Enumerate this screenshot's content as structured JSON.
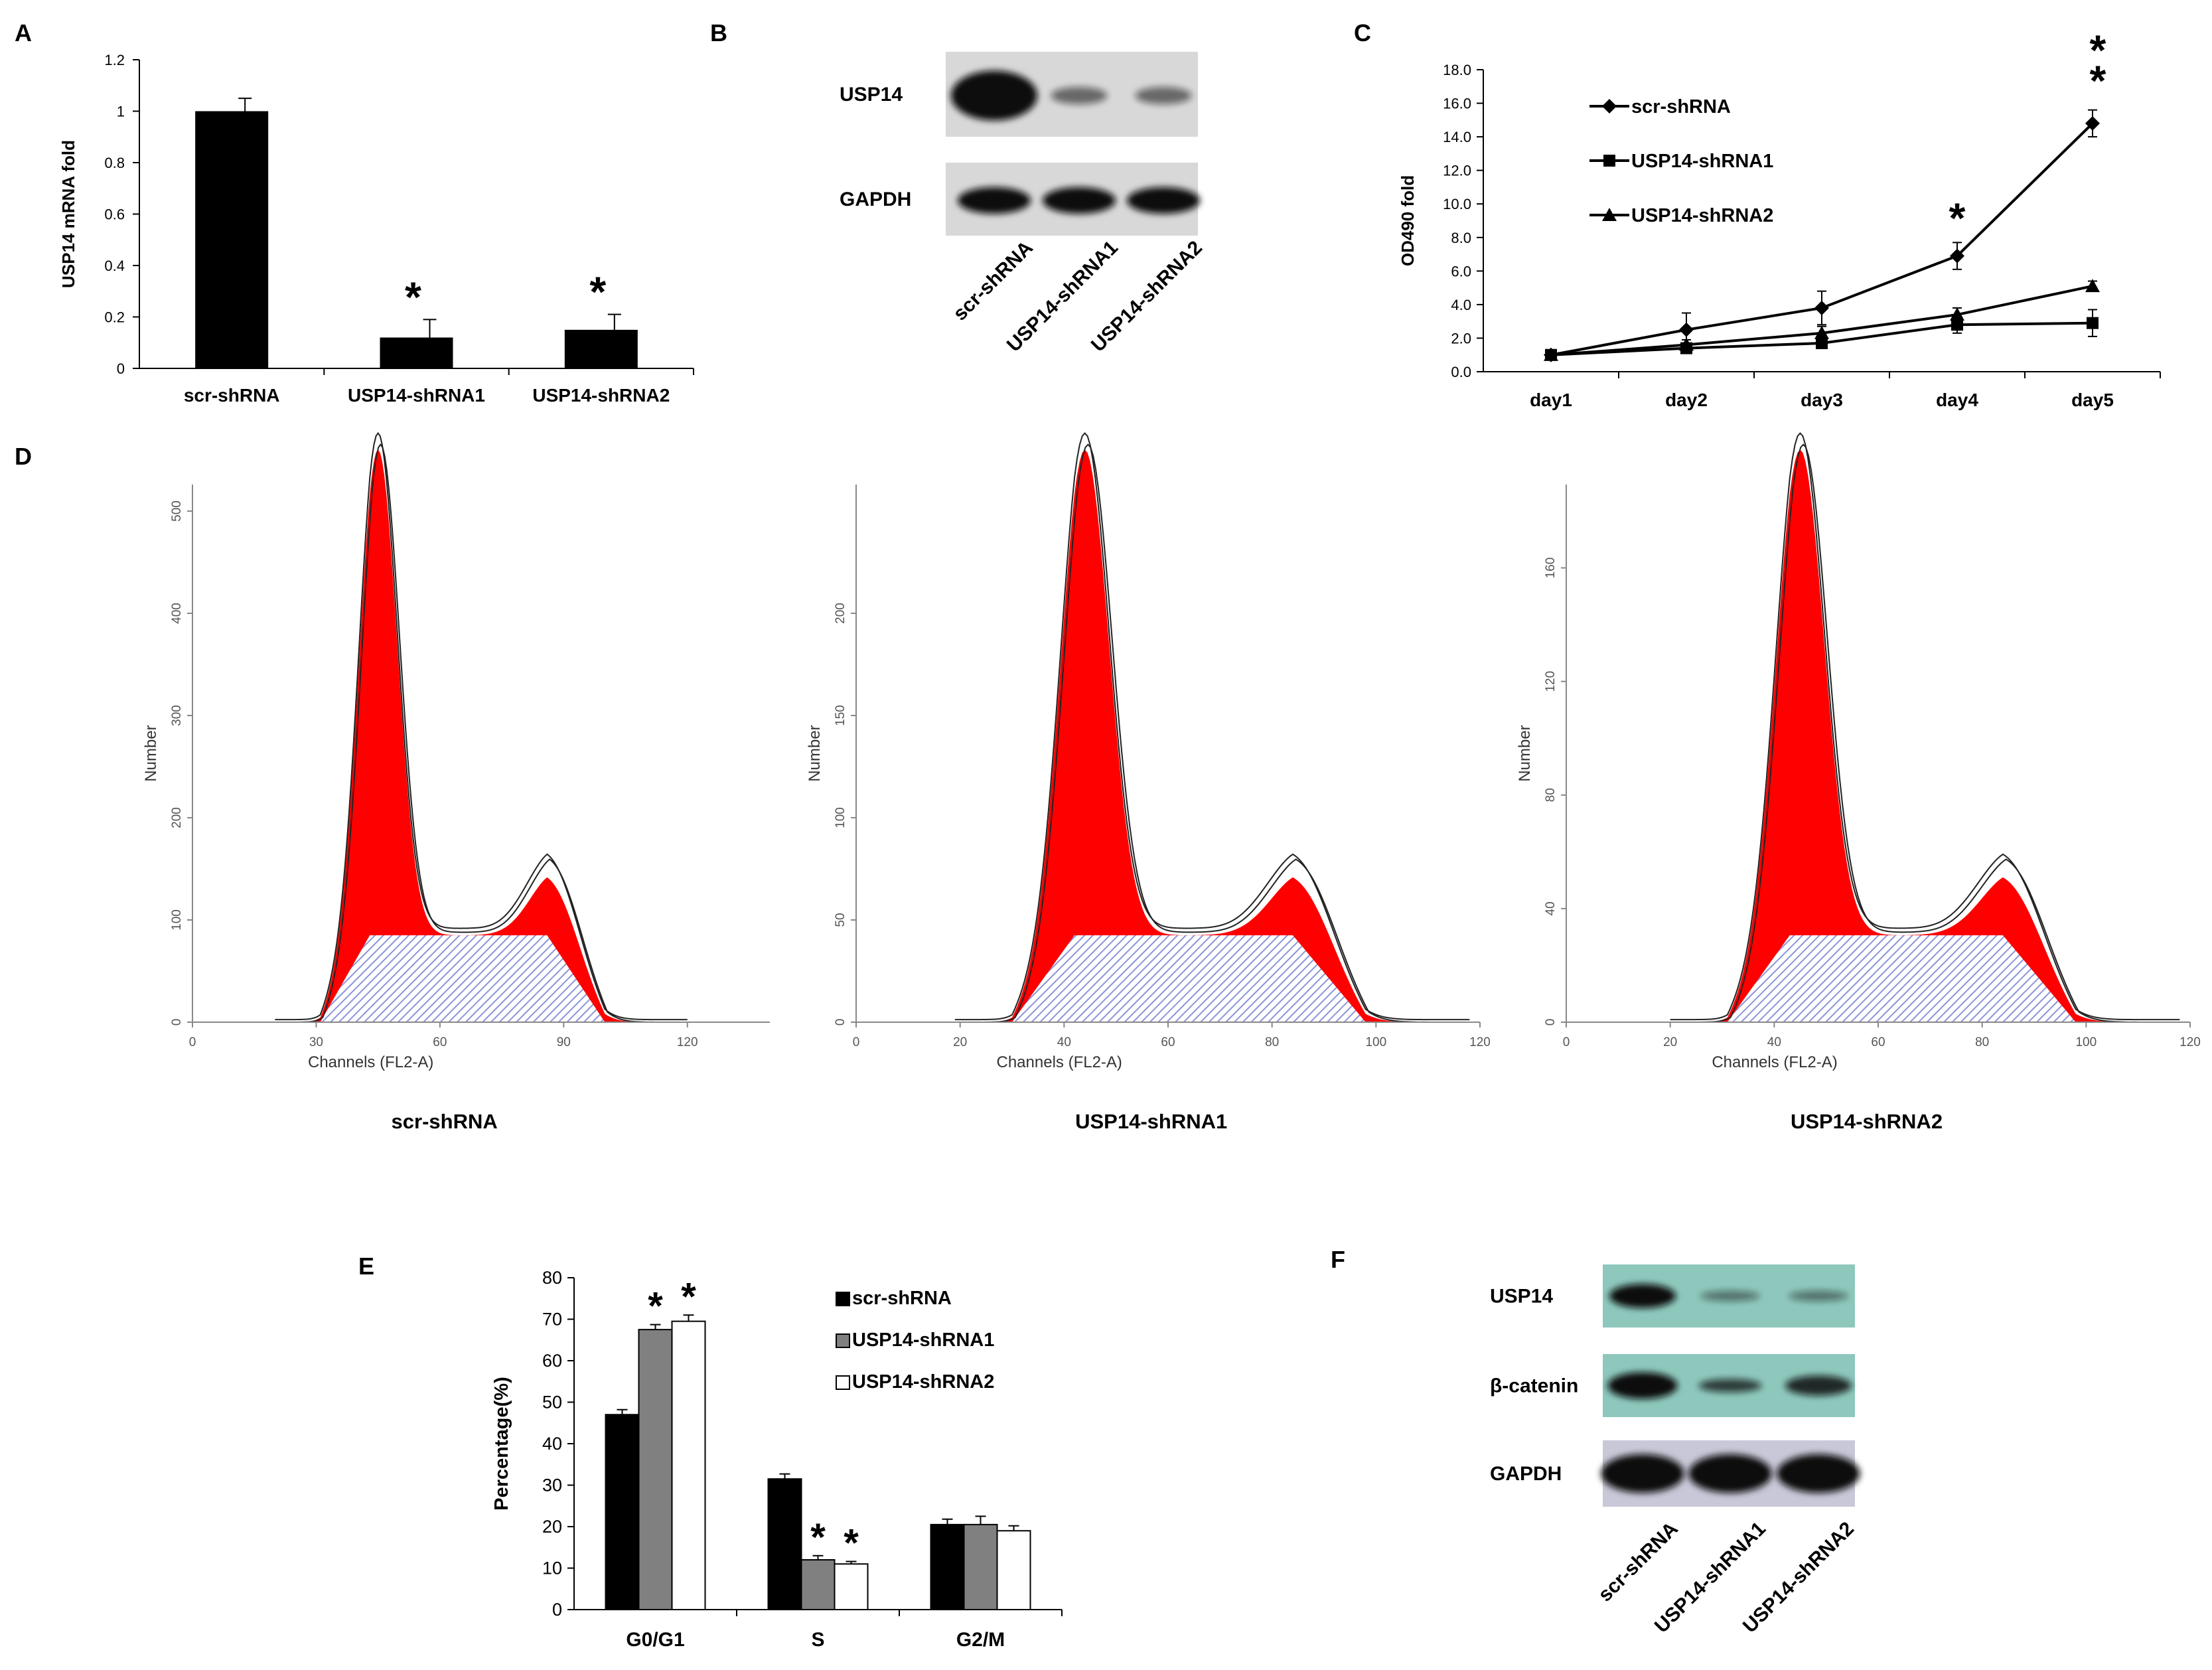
{
  "colors": {
    "bar_black": "#000000",
    "bar_gray": "#808080",
    "bar_white": "#ffffff",
    "flow_red": "#ff0000",
    "flow_hatch": "#8c94d8",
    "blot_band": "#101010",
    "blot_bg": "#d8d8d8",
    "blot_bg_f": "#8ec8bd"
  },
  "panels": {
    "A": "A",
    "B": "B",
    "C": "C",
    "D": "D",
    "E": "E",
    "F": "F"
  },
  "chart_data": [
    {
      "id": "A",
      "type": "bar",
      "title": "",
      "xlabel": "",
      "ylabel": "USP14 mRNA fold",
      "ylim": [
        0,
        1.2
      ],
      "yticks": [
        "0",
        "0.2",
        "0.4",
        "0.6",
        "0.8",
        "1",
        "1.2"
      ],
      "categories": [
        "scr-shRNA",
        "USP14-shRNA1",
        "USP14-shRNA2"
      ],
      "values": [
        1.0,
        0.12,
        0.15
      ],
      "errors": [
        0.05,
        0.07,
        0.06
      ],
      "significance": [
        "",
        "*",
        "*"
      ]
    },
    {
      "id": "C",
      "type": "line",
      "xlabel": "",
      "ylabel": "OD490 fold",
      "ylim": [
        0,
        18
      ],
      "yticks": [
        "0.0",
        "2.0",
        "4.0",
        "6.0",
        "8.0",
        "10.0",
        "12.0",
        "14.0",
        "16.0",
        "18.0"
      ],
      "categories": [
        "day1",
        "day2",
        "day3",
        "day4",
        "day5"
      ],
      "series": [
        {
          "name": "scr-shRNA",
          "marker": "diamond",
          "values": [
            1.0,
            2.5,
            3.8,
            6.9,
            14.8
          ],
          "errors": [
            0.3,
            1.0,
            1.0,
            0.8,
            0.8
          ]
        },
        {
          "name": "USP14-shRNA1",
          "marker": "square",
          "values": [
            1.0,
            1.4,
            1.7,
            2.8,
            2.9
          ],
          "errors": [
            0.2,
            0.3,
            0.3,
            0.5,
            0.8
          ]
        },
        {
          "name": "USP14-shRNA2",
          "marker": "triangle",
          "values": [
            1.0,
            1.6,
            2.3,
            3.4,
            5.1
          ],
          "errors": [
            0.2,
            0.3,
            0.4,
            0.4,
            0.3
          ]
        }
      ],
      "significance": [
        {
          "category": "day4",
          "label": "*"
        },
        {
          "category": "day5",
          "label": "**"
        }
      ]
    },
    {
      "id": "D",
      "type": "area",
      "ylabel": "Number",
      "xlabel": "Channels (FL2-A)",
      "histograms": [
        {
          "name": "scr-shRNA",
          "xticks": [
            "0",
            "30",
            "60",
            "90",
            "120"
          ],
          "yticks": [
            "0",
            "100",
            "200",
            "300",
            "400",
            "500"
          ],
          "g1_peak_channel": 45,
          "g2_peak_channel": 88,
          "ymax": 500
        },
        {
          "name": "USP14-shRNA1",
          "xticks": [
            "0",
            "20",
            "40",
            "60",
            "80",
            "100",
            "120"
          ],
          "yticks": [
            "0",
            "50",
            "100",
            "150",
            "200"
          ],
          "g1_peak_channel": 44,
          "g2_peak_channel": 86,
          "ymax": 250
        },
        {
          "name": "USP14-shRNA2",
          "xticks": [
            "0",
            "20",
            "40",
            "60",
            "80",
            "100",
            "120"
          ],
          "yticks": [
            "0",
            "40",
            "80",
            "120",
            "160"
          ],
          "g1_peak_channel": 45,
          "g2_peak_channel": 86,
          "ymax": 180
        }
      ]
    },
    {
      "id": "E",
      "type": "bar",
      "ylabel": "Percentage(%)",
      "ylim": [
        0,
        80
      ],
      "yticks": [
        "0",
        "10",
        "20",
        "30",
        "40",
        "50",
        "60",
        "70",
        "80"
      ],
      "categories": [
        "G0/G1",
        "S",
        "G2/M"
      ],
      "series": [
        {
          "name": "scr-shRNA",
          "color": "black",
          "values": [
            47,
            31.5,
            20.5
          ],
          "errors": [
            1.2,
            1.2,
            1.3
          ]
        },
        {
          "name": "USP14-shRNA1",
          "color": "gray",
          "values": [
            67.5,
            12,
            20.5
          ],
          "errors": [
            1.2,
            1.0,
            2.0
          ]
        },
        {
          "name": "USP14-shRNA2",
          "color": "white",
          "values": [
            69.5,
            11,
            19
          ],
          "errors": [
            1.5,
            0.6,
            1.2
          ]
        }
      ],
      "significance": [
        {
          "category": "G0/G1",
          "series": "USP14-shRNA1",
          "label": "*"
        },
        {
          "category": "G0/G1",
          "series": "USP14-shRNA2",
          "label": "*"
        },
        {
          "category": "S",
          "series": "USP14-shRNA1",
          "label": "*"
        },
        {
          "category": "S",
          "series": "USP14-shRNA2",
          "label": "*"
        }
      ]
    }
  ],
  "blot_B": {
    "rows": [
      "USP14",
      "GAPDH"
    ],
    "lanes": [
      "scr-shRNA",
      "USP14-shRNA1",
      "USP14-shRNA2"
    ]
  },
  "blot_F": {
    "rows": [
      "USP14",
      "β-catenin",
      "GAPDH"
    ],
    "lanes": [
      "scr-shRNA",
      "USP14-shRNA1",
      "USP14-shRNA2"
    ]
  }
}
